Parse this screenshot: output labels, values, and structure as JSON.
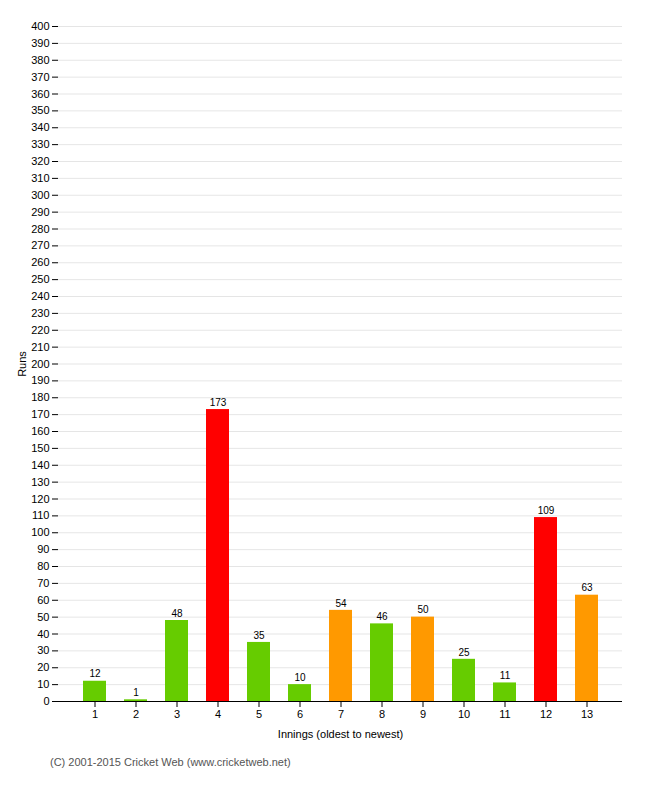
{
  "chart_data": {
    "type": "bar",
    "xlabel": "Innings (oldest to newest)",
    "ylabel": "Runs",
    "categories": [
      1,
      2,
      3,
      4,
      5,
      6,
      7,
      8,
      9,
      10,
      11,
      12,
      13
    ],
    "values": [
      12,
      1,
      48,
      173,
      35,
      10,
      54,
      46,
      50,
      25,
      11,
      109,
      63
    ],
    "colors": [
      "#66cc00",
      "#66cc00",
      "#66cc00",
      "#ff0000",
      "#66cc00",
      "#66cc00",
      "#ff9900",
      "#66cc00",
      "#ff9900",
      "#66cc00",
      "#66cc00",
      "#ff0000",
      "#ff9900"
    ],
    "ylim": [
      0,
      400
    ],
    "yticks": [
      0,
      10,
      20,
      30,
      40,
      50,
      60,
      70,
      80,
      90,
      100,
      110,
      120,
      130,
      140,
      150,
      160,
      170,
      180,
      190,
      200,
      210,
      220,
      230,
      240,
      250,
      260,
      270,
      280,
      290,
      300,
      310,
      320,
      330,
      340,
      350,
      360,
      370,
      380,
      390,
      400
    ],
    "grid": true,
    "data_labels": true,
    "caption": "(C) 2001-2015 Cricket Web (www.cricketweb.net)"
  }
}
